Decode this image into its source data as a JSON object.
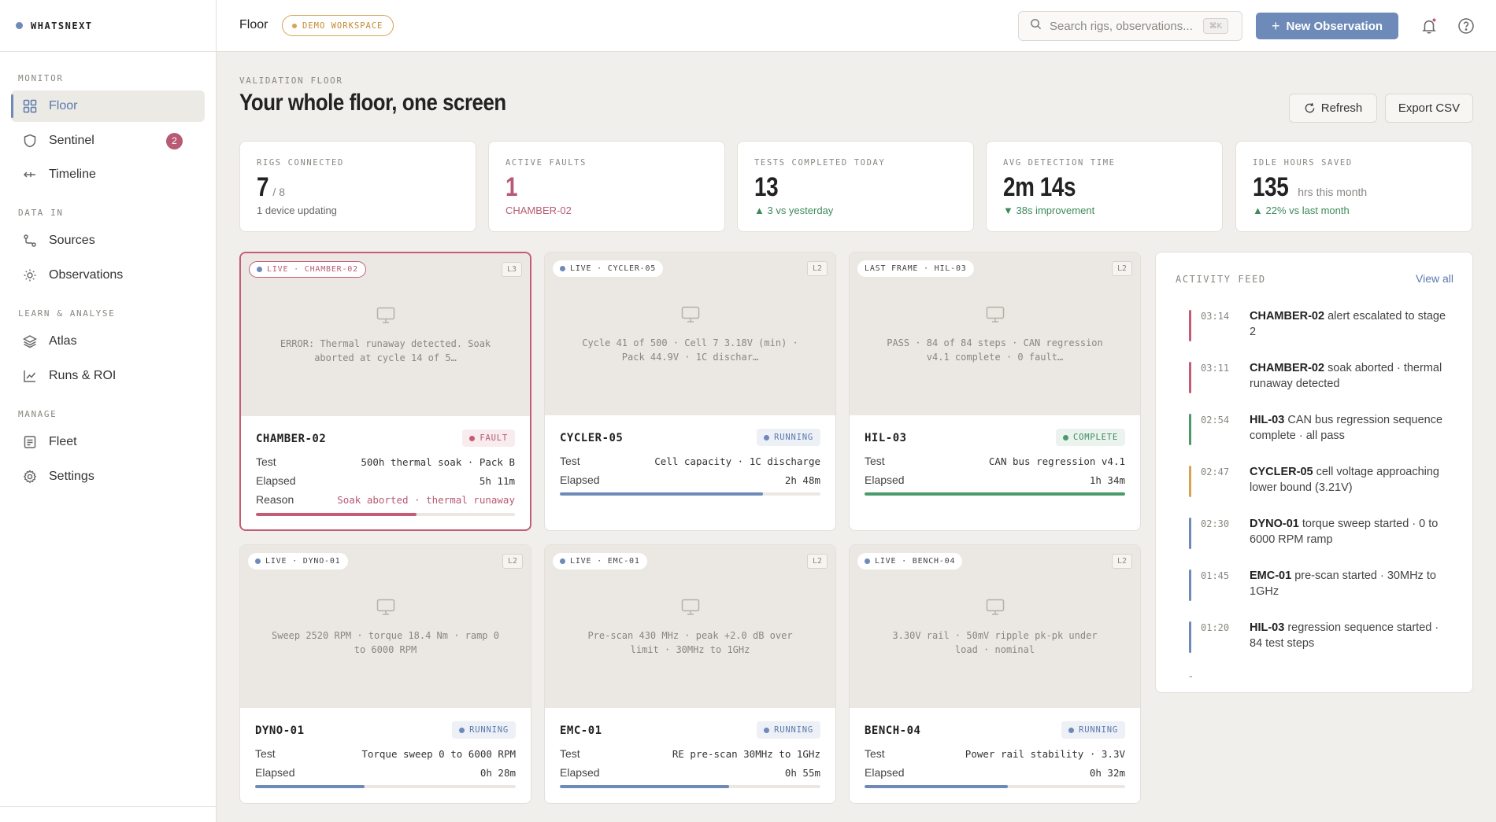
{
  "brand": "WHATSNEXT",
  "sidebar": {
    "sections": [
      "MONITOR",
      "DATA IN",
      "LEARN & ANALYSE",
      "MANAGE"
    ],
    "items": [
      {
        "label": "Floor"
      },
      {
        "label": "Sentinel",
        "badge": "2"
      },
      {
        "label": "Timeline"
      },
      {
        "label": "Sources"
      },
      {
        "label": "Observations"
      },
      {
        "label": "Atlas"
      },
      {
        "label": "Runs & ROI"
      },
      {
        "label": "Fleet"
      },
      {
        "label": "Settings"
      }
    ]
  },
  "topbar": {
    "breadcrumb": "Floor",
    "workspace_badge": "DEMO WORKSPACE",
    "search_placeholder": "Search rigs, observations...",
    "search_shortcut": "⌘K",
    "new_button": "New Observation"
  },
  "page": {
    "eyebrow": "VALIDATION FLOOR",
    "title": "Your whole floor, one screen",
    "refresh": "Refresh",
    "export": "Export CSV"
  },
  "stats": [
    {
      "label": "RIGS CONNECTED",
      "value": "7",
      "suffix": "/ 8",
      "sub": "1 device updating"
    },
    {
      "label": "ACTIVE FAULTS",
      "value": "1",
      "suffix": "",
      "sub": "CHAMBER-02"
    },
    {
      "label": "TESTS COMPLETED TODAY",
      "value": "13",
      "suffix": "",
      "sub": "▲ 3 vs yesterday"
    },
    {
      "label": "AVG DETECTION TIME",
      "value": "2m 14s",
      "suffix": "",
      "sub": "▼ 38s improvement"
    },
    {
      "label": "IDLE HOURS SAVED",
      "value": "135",
      "suffix": "hrs this month",
      "sub": "▲ 22% vs last month"
    }
  ],
  "labels": {
    "test": "Test",
    "elapsed": "Elapsed",
    "reason": "Reason"
  },
  "rigs": [
    {
      "feed": "LIVE · CHAMBER-02",
      "level": "L3",
      "screen": "ERROR: Thermal runaway detected. Soak aborted at cycle 14 of 5…",
      "name": "CHAMBER-02",
      "status": "FAULT",
      "test": "500h thermal soak · Pack B",
      "elapsed": "5h 11m",
      "reason": "Soak aborted · thermal runaway",
      "progress": 0.62
    },
    {
      "feed": "LIVE · CYCLER-05",
      "level": "L2",
      "screen": "Cycle 41 of 500 · Cell 7 3.18V (min) · Pack 44.9V · 1C dischar…",
      "name": "CYCLER-05",
      "status": "RUNNING",
      "test": "Cell capacity · 1C discharge",
      "elapsed": "2h 48m",
      "progress": 0.78
    },
    {
      "feed": "LAST FRAME · HIL-03",
      "level": "L2",
      "screen": "PASS · 84 of 84 steps · CAN regression v4.1 complete · 0 fault…",
      "name": "HIL-03",
      "status": "COMPLETE",
      "test": "CAN bus regression v4.1",
      "elapsed": "1h 34m",
      "progress": 1.0
    },
    {
      "feed": "LIVE · DYNO-01",
      "level": "L2",
      "screen": "Sweep 2520 RPM · torque 18.4 Nm · ramp 0 to 6000 RPM",
      "name": "DYNO-01",
      "status": "RUNNING",
      "test": "Torque sweep 0 to 6000 RPM",
      "elapsed": "0h 28m",
      "progress": 0.42
    },
    {
      "feed": "LIVE · EMC-01",
      "level": "L2",
      "screen": "Pre-scan 430 MHz · peak +2.0 dB over limit · 30MHz to 1GHz",
      "name": "EMC-01",
      "status": "RUNNING",
      "test": "RE pre-scan 30MHz to 1GHz",
      "elapsed": "0h 55m",
      "progress": 0.65
    },
    {
      "feed": "LIVE · BENCH-04",
      "level": "L2",
      "screen": "3.30V rail · 50mV ripple pk-pk under load · nominal",
      "name": "BENCH-04",
      "status": "RUNNING",
      "test": "Power rail stability · 3.3V",
      "elapsed": "0h 32m",
      "progress": 0.55
    }
  ],
  "feed": {
    "title": "ACTIVITY FEED",
    "view_all": "View all",
    "items": [
      {
        "time": "03:14",
        "rig": "CHAMBER-02",
        "text": " alert escalated to stage 2",
        "color": "#c45c76"
      },
      {
        "time": "03:11",
        "rig": "CHAMBER-02",
        "text": " soak aborted · thermal runaway detected",
        "color": "#c45c76"
      },
      {
        "time": "02:54",
        "rig": "HIL-03",
        "text": " CAN bus regression sequence complete · all pass",
        "color": "#4b9a6a"
      },
      {
        "time": "02:47",
        "rig": "CYCLER-05",
        "text": " cell voltage approaching lower bound (3.21V)",
        "color": "#d8a253"
      },
      {
        "time": "02:30",
        "rig": "DYNO-01",
        "text": " torque sweep started · 0 to 6000 RPM ramp",
        "color": "#6e8ab8"
      },
      {
        "time": "01:45",
        "rig": "EMC-01",
        "text": " pre-scan started · 30MHz to 1GHz",
        "color": "#6e8ab8"
      },
      {
        "time": "01:20",
        "rig": "HIL-03",
        "text": " regression sequence started · 84 test steps",
        "color": "#6e8ab8"
      }
    ],
    "more": "-"
  }
}
